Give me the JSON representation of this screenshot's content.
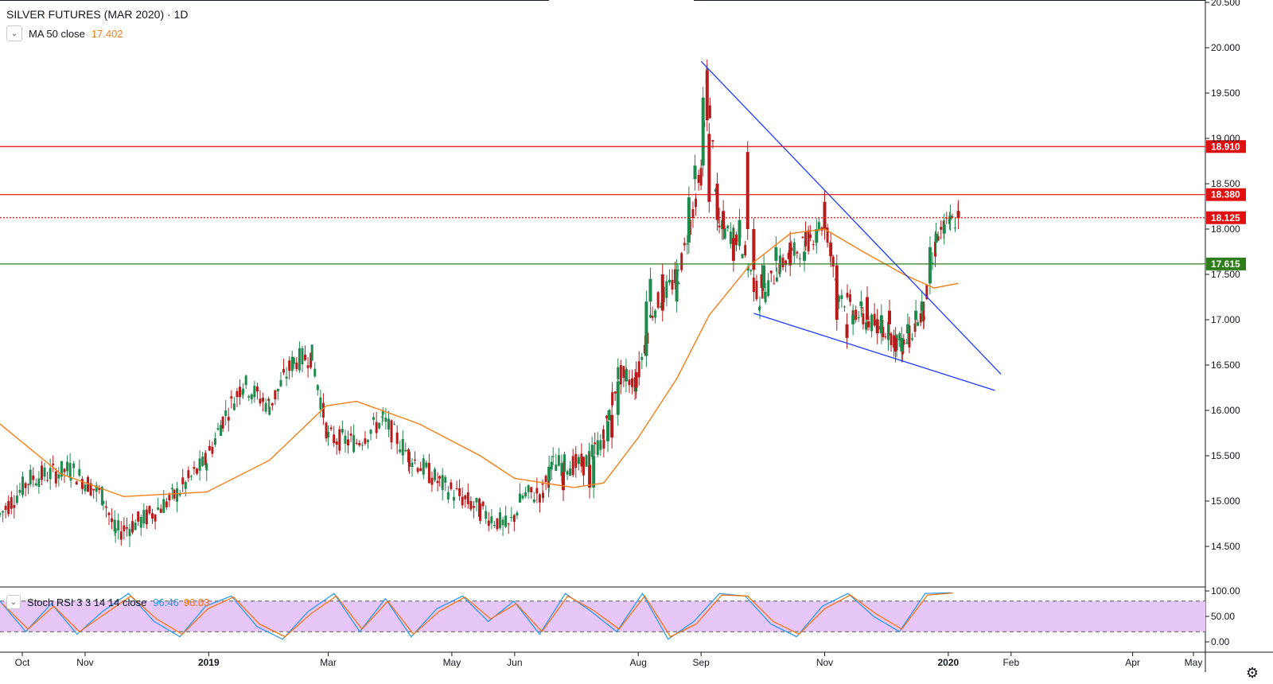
{
  "header": {
    "symbol": "SILVER FUTURES (MAR 2020)",
    "separator": " · ",
    "interval": "1D"
  },
  "indicator_ma": {
    "toggle_icon": "chevron-down-icon",
    "label": "MA 50 close",
    "value": "17.402",
    "color": "#f57f17"
  },
  "indicator_rsi": {
    "toggle_icon": "chevron-down-icon",
    "label": "Stoch RSI 3 3 14 14 close",
    "k_value": "96.46",
    "d_value": "96.03",
    "k_color": "#2196f3",
    "d_color": "#ff6d00"
  },
  "colors": {
    "up": "#26a69a",
    "up_body": "#1e8a4c",
    "down": "#b71c1c",
    "ma": "#f57f17",
    "trendline": "#1e3cff",
    "level_red": "#e01010",
    "level_green": "#2e7d1a",
    "rsi_band": "#e6c7f7"
  },
  "chart_data": [
    {
      "type": "line",
      "title": "SILVER FUTURES (MAR 2020)",
      "interval": "1D",
      "y_ticks": [
        "14.500",
        "15.000",
        "15.500",
        "16.000",
        "16.500",
        "17.000",
        "17.500",
        "18.000",
        "18.500",
        "19.000",
        "19.500",
        "20.000",
        "20.500"
      ],
      "ylim": [
        14.2,
        20.5
      ],
      "x_ticks": [
        {
          "label": "Oct",
          "date": "2018-10-01"
        },
        {
          "label": "Nov",
          "date": "2018-11-01"
        },
        {
          "label": "2019",
          "date": "2019-01-01"
        },
        {
          "label": "Mar",
          "date": "2019-03-01"
        },
        {
          "label": "May",
          "date": "2019-05-01"
        },
        {
          "label": "Jun",
          "date": "2019-06-01"
        },
        {
          "label": "Aug",
          "date": "2019-08-01"
        },
        {
          "label": "Sep",
          "date": "2019-09-01"
        },
        {
          "label": "Nov",
          "date": "2019-11-01"
        },
        {
          "label": "2020",
          "date": "2020-01-01"
        },
        {
          "label": "Feb",
          "date": "2020-02-01"
        },
        {
          "label": "Apr",
          "date": "2020-04-01"
        },
        {
          "label": "May",
          "date": "2020-05-01"
        }
      ],
      "price_path": [
        [
          "2018-09-20",
          14.85
        ],
        [
          "2018-10-05",
          15.25
        ],
        [
          "2018-10-25",
          15.35
        ],
        [
          "2018-11-10",
          15.05
        ],
        [
          "2018-11-16",
          14.65
        ],
        [
          "2018-11-30",
          14.8
        ],
        [
          "2018-12-15",
          15.05
        ],
        [
          "2018-12-31",
          15.45
        ],
        [
          "2019-01-08",
          15.9
        ],
        [
          "2019-01-18",
          16.3
        ],
        [
          "2019-01-31",
          16.05
        ],
        [
          "2019-02-12",
          16.55
        ],
        [
          "2019-02-21",
          16.6
        ],
        [
          "2019-03-01",
          15.7
        ],
        [
          "2019-03-15",
          15.65
        ],
        [
          "2019-03-28",
          15.9
        ],
        [
          "2019-04-10",
          15.5
        ],
        [
          "2019-04-25",
          15.2
        ],
        [
          "2019-05-15",
          14.9
        ],
        [
          "2019-05-29",
          14.7
        ],
        [
          "2019-06-05",
          15.05
        ],
        [
          "2019-06-15",
          15.1
        ],
        [
          "2019-06-20",
          15.4
        ],
        [
          "2019-07-05",
          15.4
        ],
        [
          "2019-07-15",
          15.7
        ],
        [
          "2019-07-22",
          16.4
        ],
        [
          "2019-07-31",
          16.3
        ],
        [
          "2019-08-08",
          17.1
        ],
        [
          "2019-08-21",
          17.5
        ],
        [
          "2019-09-01",
          18.6
        ],
        [
          "2019-09-04",
          19.7
        ],
        [
          "2019-09-10",
          18.0
        ],
        [
          "2019-09-20",
          17.9
        ],
        [
          "2019-09-30",
          17.2
        ],
        [
          "2019-10-10",
          17.6
        ],
        [
          "2019-10-25",
          17.9
        ],
        [
          "2019-11-01",
          18.1
        ],
        [
          "2019-11-08",
          17.3
        ],
        [
          "2019-11-20",
          17.0
        ],
        [
          "2019-12-01",
          16.9
        ],
        [
          "2019-12-10",
          16.7
        ],
        [
          "2019-12-20",
          17.1
        ],
        [
          "2019-12-27",
          17.95
        ],
        [
          "2020-01-06",
          18.125
        ]
      ],
      "candles": [
        [
          "2019-06-18",
          15.22,
          15.38
        ],
        [
          "2019-06-25",
          15.32,
          15.12
        ],
        [
          "2019-07-08",
          15.4,
          15.15
        ],
        [
          "2019-07-10",
          15.15,
          15.5
        ],
        [
          "2019-07-17",
          15.66,
          15.88
        ],
        [
          "2019-07-19",
          15.95,
          15.7
        ],
        [
          "2019-07-22",
          15.95,
          16.32
        ],
        [
          "2019-07-26",
          16.32,
          16.45
        ],
        [
          "2019-07-31",
          16.42,
          16.25
        ],
        [
          "2019-08-05",
          16.6,
          17.2
        ],
        [
          "2019-08-07",
          17.2,
          17.45
        ],
        [
          "2019-08-13",
          17.5,
          17.1
        ],
        [
          "2019-08-20",
          17.2,
          17.55
        ],
        [
          "2019-08-26",
          17.85,
          18.35
        ],
        [
          "2019-08-29",
          18.55,
          18.7
        ],
        [
          "2019-09-02",
          18.7,
          19.45
        ],
        [
          "2019-09-04",
          19.75,
          19.2
        ],
        [
          "2019-09-05",
          19.05,
          18.3
        ],
        [
          "2019-09-09",
          18.5,
          18.1
        ],
        [
          "2019-09-12",
          18.2,
          18.0
        ],
        [
          "2019-09-17",
          17.9,
          17.65
        ],
        [
          "2019-09-20",
          17.9,
          18.1
        ],
        [
          "2019-09-24",
          18.85,
          18.0
        ],
        [
          "2019-09-27",
          18.0,
          17.55
        ],
        [
          "2019-10-01",
          17.5,
          17.35
        ],
        [
          "2019-10-02",
          17.35,
          17.6
        ],
        [
          "2019-10-08",
          17.65,
          17.8
        ],
        [
          "2019-10-15",
          17.85,
          17.6
        ],
        [
          "2019-10-22",
          17.65,
          17.75
        ],
        [
          "2019-10-28",
          17.85,
          18.0
        ],
        [
          "2019-11-01",
          18.3,
          18.0
        ],
        [
          "2019-11-04",
          17.85,
          17.7
        ],
        [
          "2019-11-07",
          17.6,
          17.0
        ],
        [
          "2019-11-12",
          16.95,
          16.8
        ],
        [
          "2019-11-15",
          16.95,
          17.05
        ],
        [
          "2019-11-19",
          17.15,
          17.2
        ],
        [
          "2019-11-22",
          17.25,
          17.0
        ],
        [
          "2019-11-27",
          17.0,
          16.85
        ],
        [
          "2019-11-29",
          16.85,
          17.05
        ],
        [
          "2019-12-03",
          17.1,
          16.95
        ],
        [
          "2019-12-06",
          16.8,
          16.65
        ],
        [
          "2019-12-09",
          16.65,
          16.8
        ],
        [
          "2019-12-12",
          16.85,
          16.95
        ],
        [
          "2019-12-16",
          17.0,
          17.1
        ],
        [
          "2019-12-19",
          17.1,
          17.2
        ],
        [
          "2019-12-23",
          17.4,
          17.8
        ],
        [
          "2019-12-26",
          17.85,
          17.95
        ],
        [
          "2019-12-30",
          17.95,
          18.05
        ],
        [
          "2020-01-02",
          18.1,
          18.15
        ],
        [
          "2020-01-06",
          18.2,
          18.12
        ]
      ],
      "ma50": [
        [
          "2018-09-20",
          15.85
        ],
        [
          "2018-10-20",
          15.3
        ],
        [
          "2018-11-20",
          15.05
        ],
        [
          "2018-12-31",
          15.1
        ],
        [
          "2019-01-31",
          15.45
        ],
        [
          "2019-02-28",
          16.05
        ],
        [
          "2019-03-15",
          16.1
        ],
        [
          "2019-04-15",
          15.85
        ],
        [
          "2019-05-15",
          15.5
        ],
        [
          "2019-06-01",
          15.25
        ],
        [
          "2019-06-30",
          15.15
        ],
        [
          "2019-07-15",
          15.2
        ],
        [
          "2019-08-01",
          15.7
        ],
        [
          "2019-08-20",
          16.35
        ],
        [
          "2019-09-05",
          17.05
        ],
        [
          "2019-09-25",
          17.6
        ],
        [
          "2019-10-15",
          17.95
        ],
        [
          "2019-11-01",
          18.0
        ],
        [
          "2019-11-20",
          17.75
        ],
        [
          "2019-12-10",
          17.5
        ],
        [
          "2019-12-25",
          17.35
        ],
        [
          "2020-01-06",
          17.402
        ]
      ],
      "trendlines": [
        {
          "from": [
            "2019-09-01",
            19.85
          ],
          "to": [
            "2020-01-27",
            16.4
          ]
        },
        {
          "from": [
            "2019-09-27",
            17.07
          ],
          "to": [
            "2020-01-24",
            16.22
          ]
        }
      ],
      "horizontal_levels": [
        {
          "value": "18.910",
          "style": "solid",
          "color": "#e01010"
        },
        {
          "value": "18.380",
          "style": "solid",
          "color": "#e01010"
        },
        {
          "value": "18.125",
          "style": "dotted",
          "color": "#e01010"
        },
        {
          "value": "17.615",
          "style": "solid",
          "color": "#2e7d1a"
        }
      ]
    },
    {
      "type": "line",
      "title": "Stoch RSI 3 3 14 14 close",
      "y_ticks": [
        "0.00",
        "50.00",
        "100.00"
      ],
      "ylim": [
        -8,
        102
      ],
      "band": [
        20,
        80
      ],
      "series": [
        {
          "name": "K",
          "values_sample": [
            80,
            20,
            75,
            15,
            60,
            95,
            40,
            10,
            70,
            90,
            30,
            5,
            60,
            95,
            20,
            85,
            10,
            65,
            90,
            40,
            80,
            15,
            95,
            60,
            20,
            95,
            5,
            40,
            95,
            90,
            35,
            10,
            70,
            95,
            50,
            20,
            95,
            96.46
          ]
        },
        {
          "name": "D",
          "values_sample": [
            75,
            25,
            70,
            20,
            55,
            90,
            45,
            15,
            65,
            88,
            35,
            10,
            55,
            90,
            25,
            80,
            15,
            60,
            88,
            45,
            75,
            20,
            90,
            62,
            25,
            90,
            10,
            35,
            92,
            90,
            40,
            15,
            65,
            92,
            55,
            25,
            92,
            96.03
          ]
        }
      ]
    }
  ]
}
